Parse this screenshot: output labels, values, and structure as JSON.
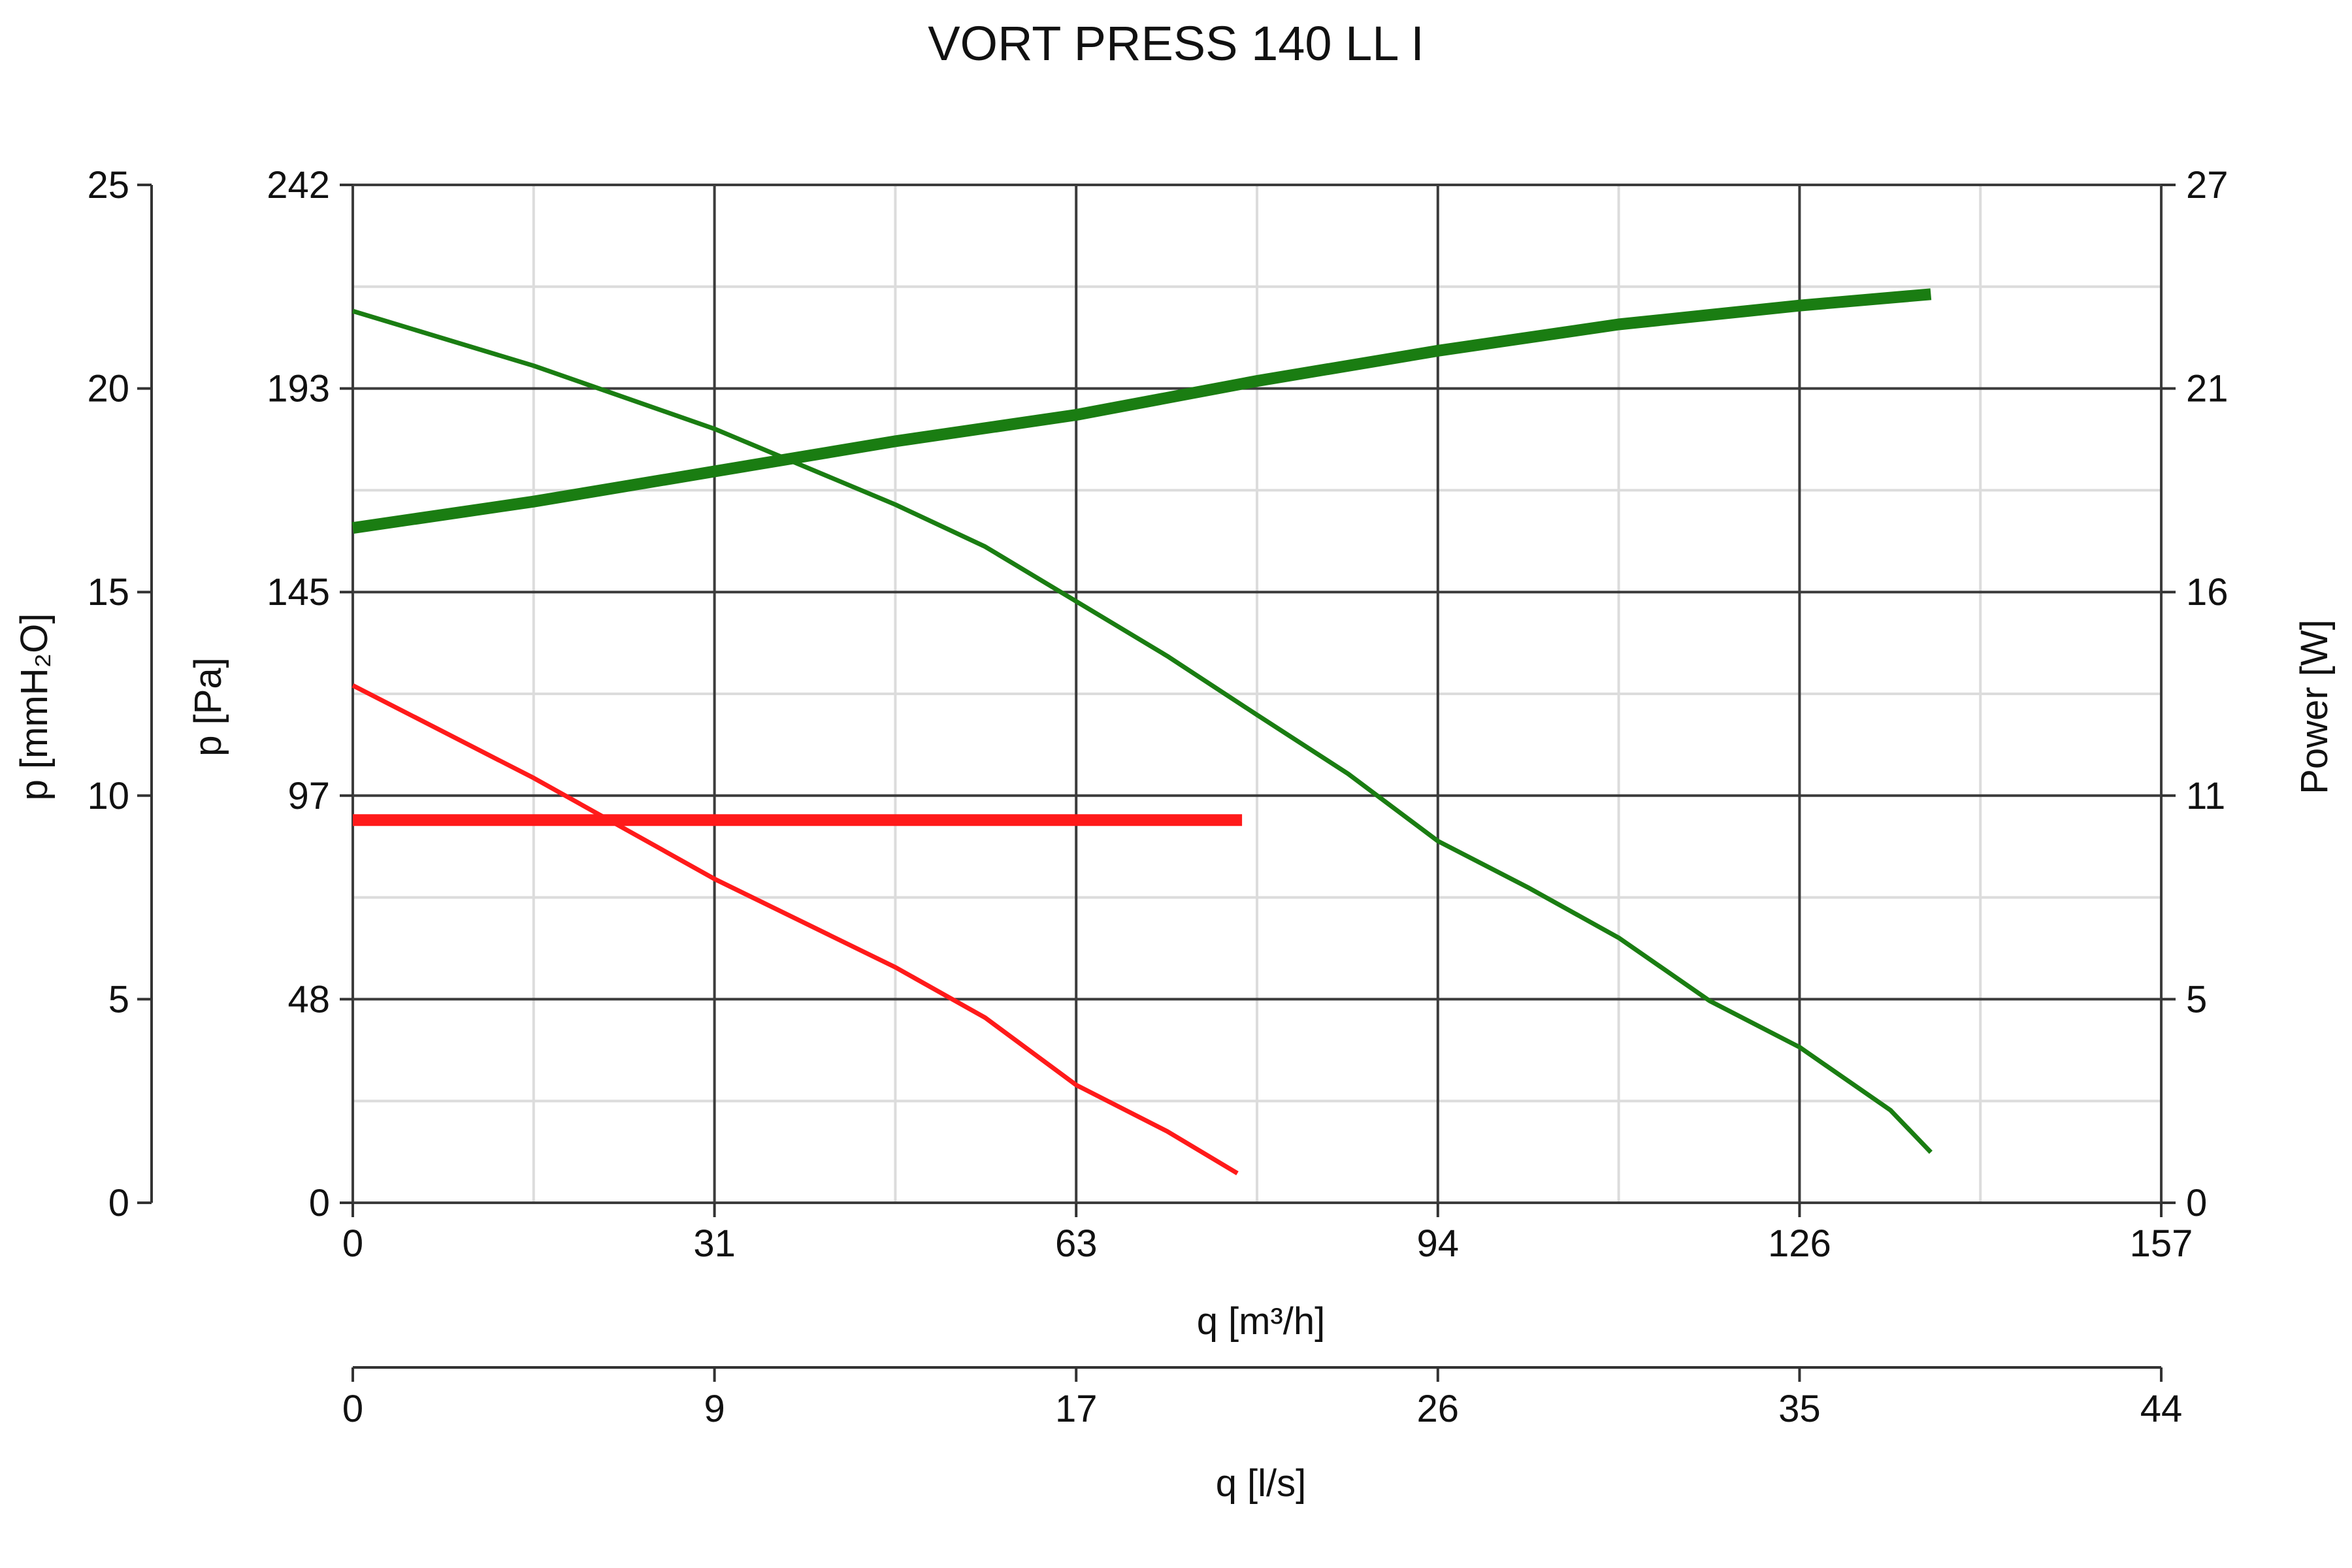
{
  "chart_data": {
    "type": "line",
    "title": "VORT PRESS 140 LL I",
    "xlabel": "q [m³/h]",
    "xlabel2": "q [l/s]",
    "ylabel_left_outer": "p [mmH₂O]",
    "ylabel_left_inner": "p [Pa]",
    "ylabel_right": "Power [W]",
    "xlim": [
      0,
      157
    ],
    "xlim2": [
      0,
      44
    ],
    "ylim_pa": [
      0,
      242
    ],
    "ylim_mmh2o": [
      0,
      25
    ],
    "ylim_power": [
      0,
      27
    ],
    "x_ticks": [
      "0",
      "31",
      "63",
      "94",
      "126",
      "157"
    ],
    "x2_ticks": [
      "0",
      "9",
      "17",
      "26",
      "35",
      "44"
    ],
    "y_pa_ticks": [
      "0",
      "48",
      "97",
      "145",
      "193",
      "242"
    ],
    "y_mmh2o_ticks": [
      "0",
      "5",
      "10",
      "15",
      "20",
      "25"
    ],
    "y_power_ticks": [
      "0",
      "5",
      "11",
      "16",
      "21",
      "27"
    ],
    "grid": true,
    "colors": {
      "green": "#1a7d12",
      "red": "#ff1a1a",
      "grid_major": "#3c3c3c",
      "grid_minor": "#dcdcdc"
    },
    "series": [
      {
        "axis": "pressure",
        "color": "#1a7d12",
        "width": "thin",
        "points": [
          [
            0,
            212
          ],
          [
            15.7,
            199
          ],
          [
            31.4,
            184
          ],
          [
            47.1,
            166
          ],
          [
            54.9,
            156
          ],
          [
            62.8,
            143
          ],
          [
            70.7,
            130
          ],
          [
            78.5,
            116
          ],
          [
            86.4,
            102
          ],
          [
            94.2,
            86
          ],
          [
            102,
            75
          ],
          [
            109.9,
            63
          ],
          [
            117.8,
            48
          ],
          [
            125.6,
            37
          ],
          [
            133.5,
            22
          ],
          [
            137,
            12
          ]
        ]
      },
      {
        "axis": "power",
        "color": "#1a7d12",
        "width": "thick",
        "points": [
          [
            0,
            17.9
          ],
          [
            15.7,
            18.6
          ],
          [
            31.4,
            19.4
          ],
          [
            47.1,
            20.2
          ],
          [
            62.8,
            20.9
          ],
          [
            78.5,
            21.8
          ],
          [
            94.2,
            22.6
          ],
          [
            109.9,
            23.3
          ],
          [
            125.6,
            23.8
          ],
          [
            137,
            24.1
          ]
        ]
      },
      {
        "axis": "pressure",
        "color": "#ff1a1a",
        "width": "thin",
        "points": [
          [
            0,
            123
          ],
          [
            15.7,
            101
          ],
          [
            31.4,
            77
          ],
          [
            47.1,
            56
          ],
          [
            54.9,
            44
          ],
          [
            62.8,
            28
          ],
          [
            70.7,
            17
          ],
          [
            76.8,
            7
          ]
        ]
      },
      {
        "axis": "power",
        "color": "#ff1a1a",
        "width": "thick",
        "points": [
          [
            0,
            10.15
          ],
          [
            77.2,
            10.15
          ]
        ]
      }
    ]
  }
}
